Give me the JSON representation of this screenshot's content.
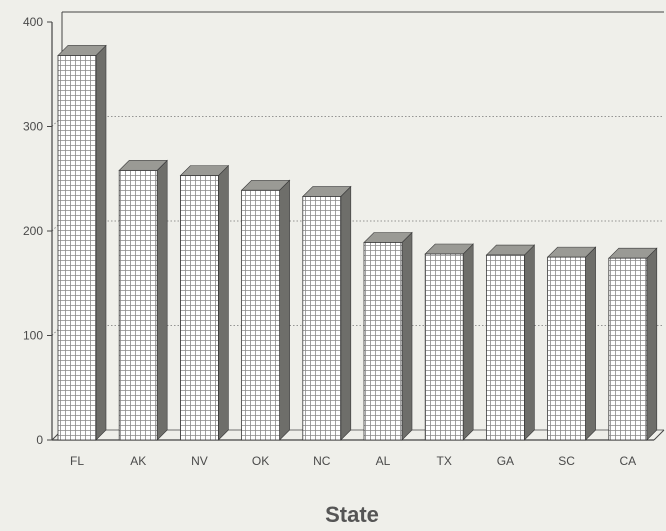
{
  "chart_data": {
    "type": "bar",
    "title": "",
    "xlabel": "State",
    "ylabel": "",
    "categories": [
      "FL",
      "AK",
      "NV",
      "OK",
      "NC",
      "AL",
      "TX",
      "GA",
      "SC",
      "CA"
    ],
    "values": [
      368,
      258,
      253,
      239,
      233,
      189,
      178,
      177,
      175,
      174
    ],
    "ylim": [
      0,
      400
    ],
    "yticks": [
      0,
      100,
      200,
      300,
      400
    ],
    "grid": "dotted horizontal",
    "style": "3d-hatched",
    "colors": {
      "bar_face": "#ffffff",
      "bar_hatch": "#8a8a8a",
      "bar_top": "#9a9a95",
      "bar_side": "#6e6e6a",
      "axis": "#444444",
      "grid": "#777777"
    }
  }
}
